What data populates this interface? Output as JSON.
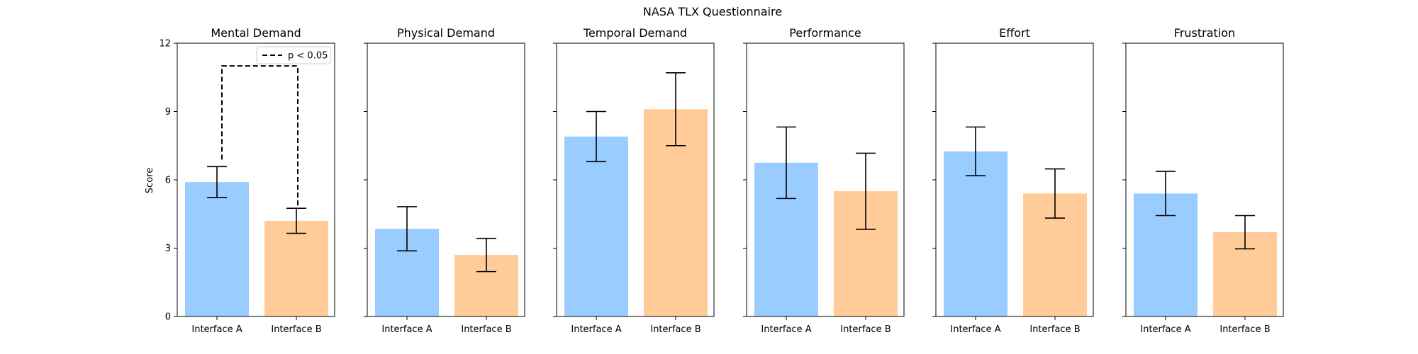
{
  "chart_data": {
    "type": "bar",
    "title": "NASA TLX Questionnaire",
    "ylabel": "Score",
    "ylim": [
      0,
      12
    ],
    "yticks": [
      0,
      3,
      6,
      9,
      12
    ],
    "categories": [
      "Interface A",
      "Interface B"
    ],
    "colors": {
      "Interface A": "#99ccff",
      "Interface B": "#ffcc99",
      "error_bar": "#000000"
    },
    "grid": false,
    "shared_y": true,
    "panels": [
      {
        "title": "Mental Demand",
        "values": [
          5.9,
          4.2
        ],
        "errors": [
          0.68,
          0.55
        ]
      },
      {
        "title": "Physical Demand",
        "values": [
          3.85,
          2.7
        ],
        "errors": [
          0.97,
          0.73
        ]
      },
      {
        "title": "Temporal Demand",
        "values": [
          7.9,
          9.1
        ],
        "errors": [
          1.1,
          1.6
        ]
      },
      {
        "title": "Performance",
        "values": [
          6.75,
          5.5
        ],
        "errors": [
          1.57,
          1.67
        ]
      },
      {
        "title": "Effort",
        "values": [
          7.25,
          5.4
        ],
        "errors": [
          1.07,
          1.08
        ]
      },
      {
        "title": "Frustration",
        "values": [
          5.4,
          3.7
        ],
        "errors": [
          0.97,
          0.73
        ]
      }
    ],
    "significance": {
      "panel": 0,
      "between": [
        0,
        1
      ],
      "y": 11,
      "legend_label": "p < 0.05",
      "legend_position": "upper-right"
    }
  }
}
